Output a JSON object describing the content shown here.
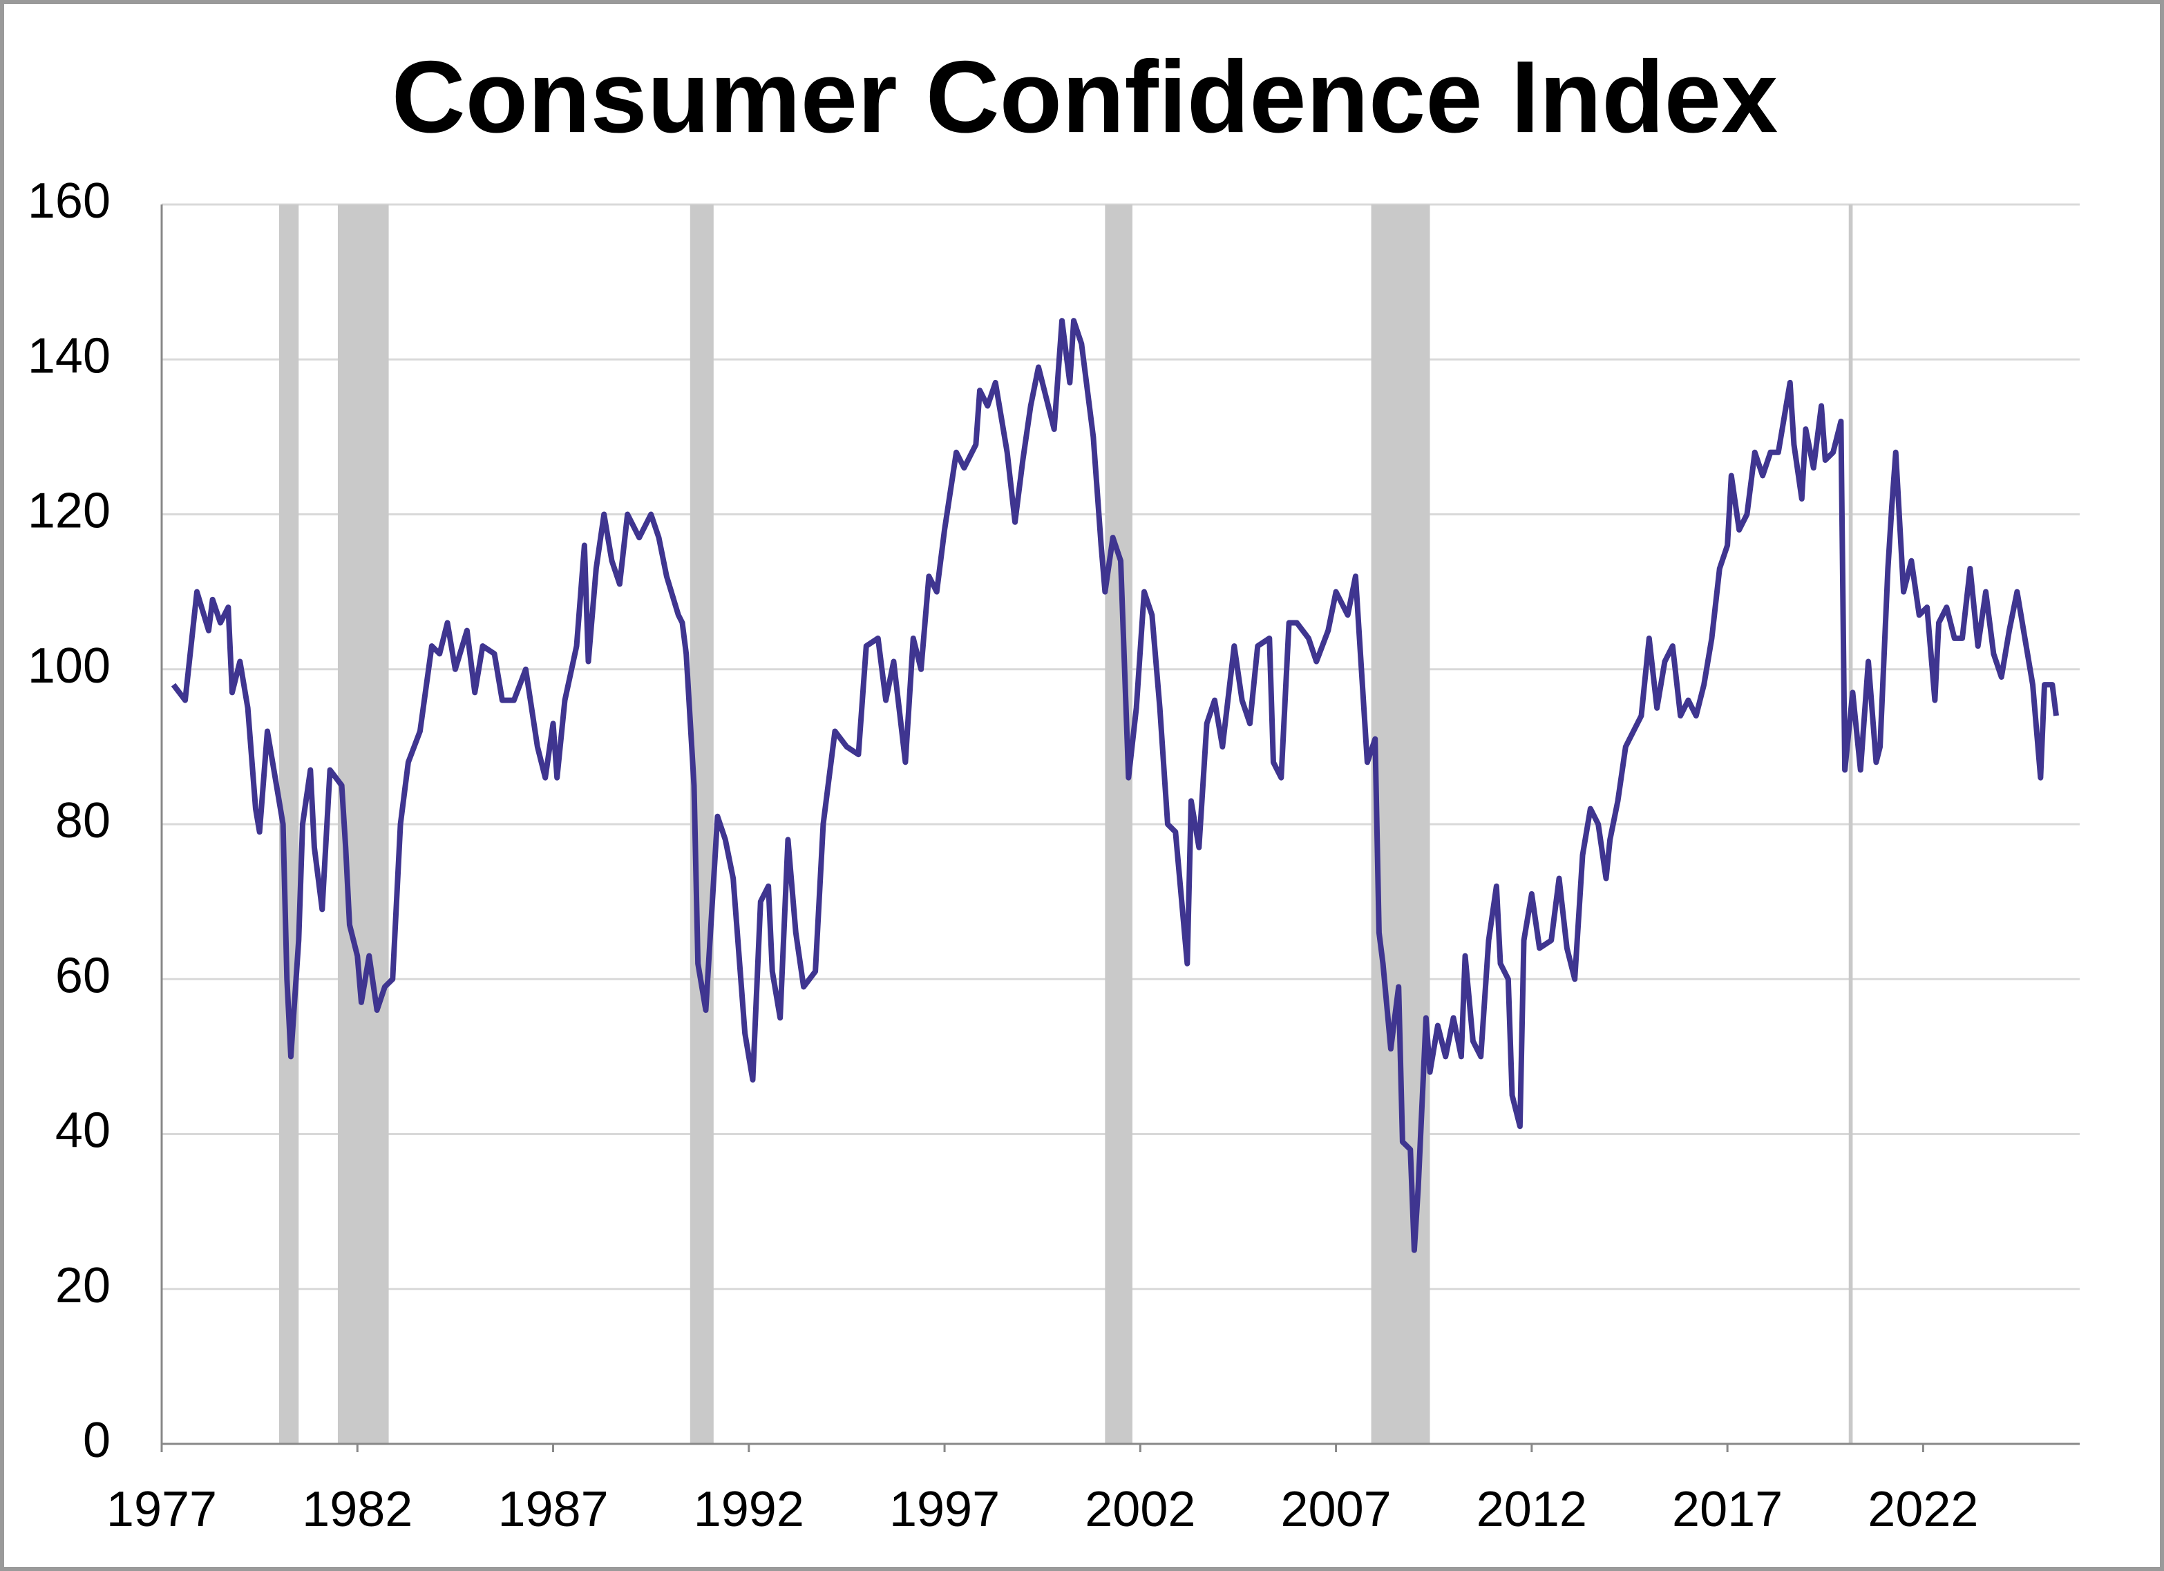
{
  "chart_data": {
    "type": "line",
    "title": "Consumer Confidence Index",
    "xlim": [
      1977,
      2026
    ],
    "xticks": [
      1977,
      1982,
      1987,
      1992,
      1997,
      2002,
      2007,
      2012,
      2017,
      2022
    ],
    "ylim": [
      0,
      160
    ],
    "yticks": [
      0,
      20,
      40,
      60,
      80,
      100,
      120,
      140,
      160
    ],
    "grid": true,
    "shaded_regions": [
      [
        1980.0,
        1980.5
      ],
      [
        1981.5,
        1982.8
      ],
      [
        1990.5,
        1991.1
      ],
      [
        2001.1,
        2001.8
      ],
      [
        2007.9,
        2009.4
      ],
      [
        2020.1,
        2020.2
      ]
    ],
    "shaded_color": "#c9c9c9",
    "series": [
      {
        "color": "#3f3590",
        "x": [
          1977.3,
          1977.6,
          1977.9,
          1978.2,
          1978.3,
          1978.5,
          1978.7,
          1978.8,
          1979.0,
          1979.2,
          1979.4,
          1979.5,
          1979.7,
          1979.9,
          1980.1,
          1980.2,
          1980.3,
          1980.5,
          1980.6,
          1980.8,
          1980.9,
          1981.1,
          1981.3,
          1981.6,
          1981.7,
          1981.8,
          1982.0,
          1982.1,
          1982.3,
          1982.5,
          1982.7,
          1982.9,
          1983.1,
          1983.3,
          1983.6,
          1983.9,
          1984.1,
          1984.3,
          1984.5,
          1984.8,
          1985.0,
          1985.2,
          1985.5,
          1985.7,
          1986.0,
          1986.3,
          1986.6,
          1986.8,
          1987.0,
          1987.1,
          1987.3,
          1987.6,
          1987.8,
          1987.9,
          1988.1,
          1988.3,
          1988.5,
          1988.7,
          1988.9,
          1989.2,
          1989.5,
          1989.7,
          1989.9,
          1990.2,
          1990.3,
          1990.4,
          1990.6,
          1990.7,
          1990.9,
          1991.2,
          1991.4,
          1991.6,
          1991.9,
          1992.1,
          1992.3,
          1992.5,
          1992.6,
          1992.8,
          1993.0,
          1993.2,
          1993.4,
          1993.7,
          1993.9,
          1994.2,
          1994.5,
          1994.8,
          1995.0,
          1995.3,
          1995.5,
          1995.7,
          1996.0,
          1996.2,
          1996.4,
          1996.6,
          1996.8,
          1997.0,
          1997.3,
          1997.5,
          1997.8,
          1997.9,
          1998.1,
          1998.3,
          1998.6,
          1998.8,
          1999.0,
          1999.2,
          1999.4,
          1999.6,
          1999.8,
          2000.0,
          2000.2,
          2000.3,
          2000.5,
          2000.8,
          2001.0,
          2001.1,
          2001.3,
          2001.5,
          2001.7,
          2001.9,
          2002.1,
          2002.3,
          2002.5,
          2002.7,
          2002.9,
          2003.2,
          2003.3,
          2003.5,
          2003.7,
          2003.9,
          2004.1,
          2004.4,
          2004.6,
          2004.8,
          2005.0,
          2005.3,
          2005.4,
          2005.6,
          2005.8,
          2006.0,
          2006.3,
          2006.5,
          2006.8,
          2007.0,
          2007.3,
          2007.5,
          2007.7,
          2007.8,
          2008.0,
          2008.1,
          2008.2,
          2008.4,
          2008.6,
          2008.7,
          2008.9,
          2009.0,
          2009.1,
          2009.3,
          2009.4,
          2009.6,
          2009.8,
          2010.0,
          2010.2,
          2010.3,
          2010.5,
          2010.7,
          2010.9,
          2011.1,
          2011.2,
          2011.4,
          2011.5,
          2011.7,
          2011.8,
          2012.0,
          2012.2,
          2012.5,
          2012.7,
          2012.9,
          2013.1,
          2013.3,
          2013.5,
          2013.7,
          2013.9,
          2014.0,
          2014.2,
          2014.4,
          2014.6,
          2014.8,
          2015.0,
          2015.2,
          2015.4,
          2015.6,
          2015.8,
          2016.0,
          2016.2,
          2016.4,
          2016.6,
          2016.8,
          2017.0,
          2017.1,
          2017.3,
          2017.5,
          2017.7,
          2017.9,
          2018.1,
          2018.3,
          2018.6,
          2018.7,
          2018.9,
          2019.0,
          2019.2,
          2019.4,
          2019.5,
          2019.7,
          2019.9,
          2020.0,
          2020.2,
          2020.4,
          2020.6,
          2020.8,
          2020.9,
          2021.1,
          2021.2,
          2021.3,
          2021.5,
          2021.7,
          2021.9,
          2022.1,
          2022.3,
          2022.4,
          2022.6,
          2022.8,
          2023.0,
          2023.2,
          2023.4,
          2023.6,
          2023.8,
          2024.0,
          2024.2,
          2024.4,
          2024.6,
          2024.8,
          2025.0,
          2025.1,
          2025.3,
          2025.4
        ],
        "values": [
          98,
          96,
          110,
          105,
          109,
          106,
          108,
          97,
          101,
          95,
          82,
          79,
          92,
          86,
          80,
          60,
          50,
          65,
          80,
          87,
          77,
          69,
          87,
          85,
          77,
          67,
          63,
          57,
          63,
          56,
          59,
          60,
          80,
          88,
          92,
          103,
          102,
          106,
          100,
          105,
          97,
          103,
          102,
          96,
          96,
          100,
          90,
          86,
          93,
          86,
          96,
          103,
          116,
          101,
          113,
          120,
          114,
          111,
          120,
          117,
          120,
          117,
          112,
          107,
          106,
          102,
          85,
          62,
          56,
          81,
          78,
          73,
          53,
          47,
          70,
          72,
          61,
          55,
          78,
          66,
          59,
          61,
          80,
          92,
          90,
          89,
          103,
          104,
          96,
          101,
          88,
          104,
          100,
          112,
          110,
          118,
          128,
          126,
          129,
          136,
          134,
          137,
          128,
          119,
          127,
          134,
          139,
          135,
          131,
          145,
          137,
          145,
          142,
          130,
          116,
          110,
          117,
          114,
          86,
          95,
          110,
          107,
          95,
          80,
          79,
          62,
          83,
          77,
          93,
          96,
          90,
          103,
          96,
          93,
          103,
          104,
          88,
          86,
          106,
          106,
          104,
          101,
          105,
          110,
          107,
          112,
          96,
          88,
          91,
          66,
          62,
          51,
          59,
          39,
          38,
          25,
          33,
          55,
          48,
          54,
          50,
          55,
          50,
          63,
          52,
          50,
          65,
          72,
          62,
          60,
          45,
          41,
          65,
          71,
          64,
          65,
          73,
          64,
          60,
          76,
          82,
          80,
          73,
          78,
          83,
          90,
          92,
          94,
          104,
          95,
          101,
          103,
          94,
          96,
          94,
          98,
          104,
          113,
          116,
          125,
          118,
          120,
          128,
          125,
          128,
          128,
          137,
          129,
          122,
          131,
          126,
          134,
          127,
          128,
          132,
          87,
          97,
          87,
          101,
          88,
          90,
          113,
          121,
          128,
          110,
          114,
          107,
          108,
          96,
          106,
          108,
          104,
          104,
          113,
          103,
          110,
          102,
          99,
          105,
          110,
          104,
          98,
          86,
          98,
          98,
          94
        ]
      }
    ]
  }
}
